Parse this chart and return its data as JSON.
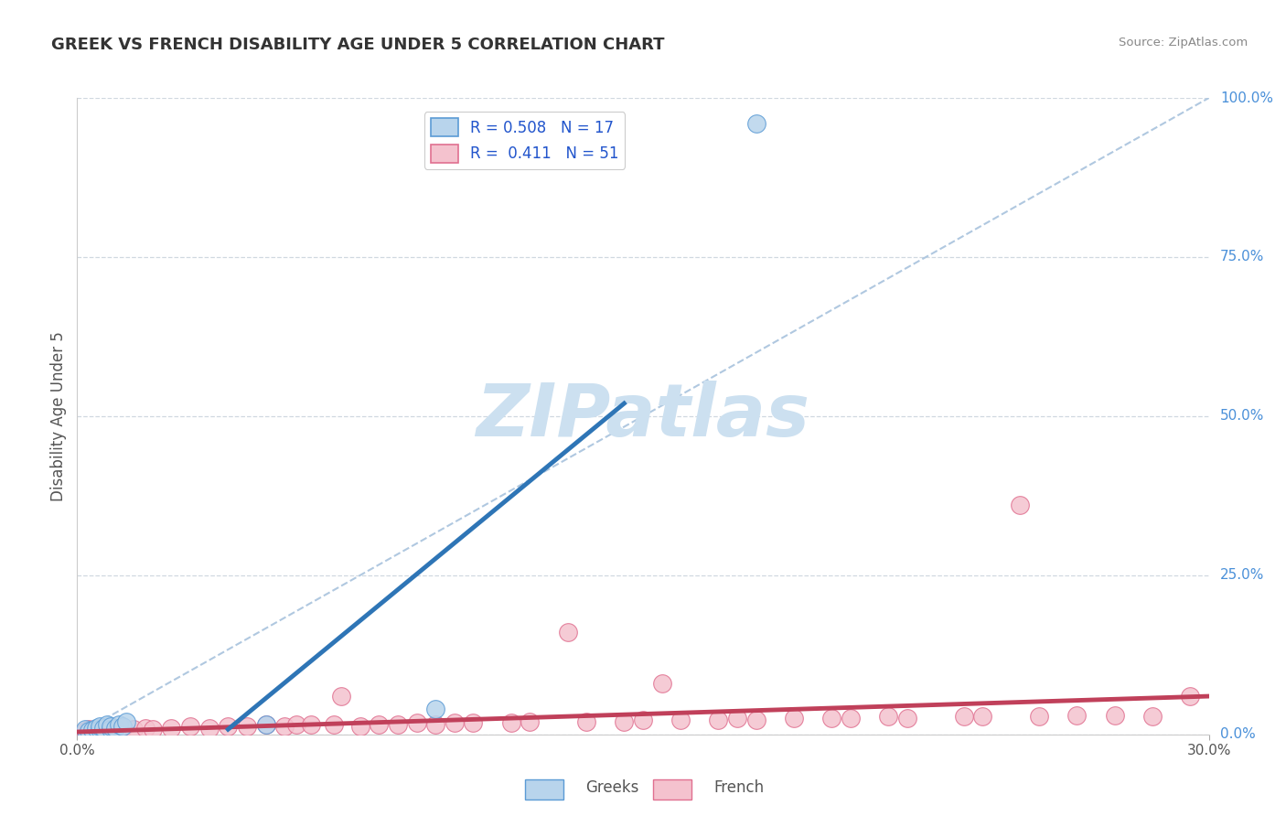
{
  "title": "GREEK VS FRENCH DISABILITY AGE UNDER 5 CORRELATION CHART",
  "source": "Source: ZipAtlas.com",
  "ylabel": "Disability Age Under 5",
  "xlim": [
    0.0,
    0.3
  ],
  "ylim": [
    0.0,
    1.0
  ],
  "xticks": [
    0.0,
    0.3
  ],
  "xtick_labels": [
    "0.0%",
    "30.0%"
  ],
  "yticks_right": [
    0.0,
    0.25,
    0.5,
    0.75,
    1.0
  ],
  "ytick_labels_right": [
    "0.0%",
    "25.0%",
    "50.0%",
    "75.0%",
    "100.0%"
  ],
  "greek_R": 0.508,
  "greek_N": 17,
  "french_R": 0.411,
  "french_N": 51,
  "greek_color": "#b8d4ec",
  "greek_edge_color": "#5b9bd5",
  "greek_line_color": "#2e75b6",
  "french_color": "#f4c2ce",
  "french_edge_color": "#e07090",
  "french_line_color": "#c0405a",
  "ref_line_color": "#b0c8e0",
  "background_color": "#ffffff",
  "watermark_text": "ZIPatlas",
  "watermark_color": "#cce0f0",
  "greek_scatter_x": [
    0.002,
    0.003,
    0.004,
    0.005,
    0.006,
    0.006,
    0.007,
    0.008,
    0.009,
    0.009,
    0.01,
    0.011,
    0.012,
    0.013,
    0.05,
    0.095,
    0.18
  ],
  "greek_scatter_y": [
    0.008,
    0.005,
    0.007,
    0.01,
    0.008,
    0.012,
    0.01,
    0.015,
    0.008,
    0.012,
    0.01,
    0.015,
    0.012,
    0.02,
    0.015,
    0.04,
    0.96
  ],
  "greek_line_x": [
    0.04,
    0.145
  ],
  "greek_line_y": [
    0.008,
    0.52
  ],
  "french_scatter_x": [
    0.002,
    0.003,
    0.005,
    0.007,
    0.01,
    0.012,
    0.015,
    0.018,
    0.02,
    0.025,
    0.03,
    0.035,
    0.04,
    0.045,
    0.05,
    0.055,
    0.058,
    0.062,
    0.068,
    0.075,
    0.08,
    0.085,
    0.09,
    0.095,
    0.1,
    0.105,
    0.115,
    0.12,
    0.135,
    0.145,
    0.15,
    0.16,
    0.17,
    0.175,
    0.18,
    0.19,
    0.2,
    0.205,
    0.215,
    0.22,
    0.235,
    0.24,
    0.255,
    0.265,
    0.275,
    0.285,
    0.295,
    0.155,
    0.07,
    0.13,
    0.25
  ],
  "french_scatter_y": [
    0.005,
    0.008,
    0.005,
    0.007,
    0.008,
    0.01,
    0.008,
    0.01,
    0.008,
    0.01,
    0.012,
    0.01,
    0.012,
    0.012,
    0.015,
    0.012,
    0.015,
    0.015,
    0.015,
    0.012,
    0.015,
    0.015,
    0.018,
    0.015,
    0.018,
    0.018,
    0.018,
    0.02,
    0.02,
    0.02,
    0.022,
    0.022,
    0.022,
    0.025,
    0.022,
    0.025,
    0.025,
    0.025,
    0.028,
    0.025,
    0.028,
    0.028,
    0.028,
    0.03,
    0.03,
    0.028,
    0.06,
    0.08,
    0.06,
    0.16,
    0.36
  ],
  "french_line_x": [
    0.0,
    0.3
  ],
  "french_line_y": [
    0.004,
    0.06
  ],
  "ref_line_x": [
    0.0,
    0.3
  ],
  "ref_line_y": [
    0.0,
    1.0
  ],
  "title_fontsize": 13,
  "legend_fontsize": 12,
  "tick_fontsize": 11,
  "ylabel_fontsize": 12
}
